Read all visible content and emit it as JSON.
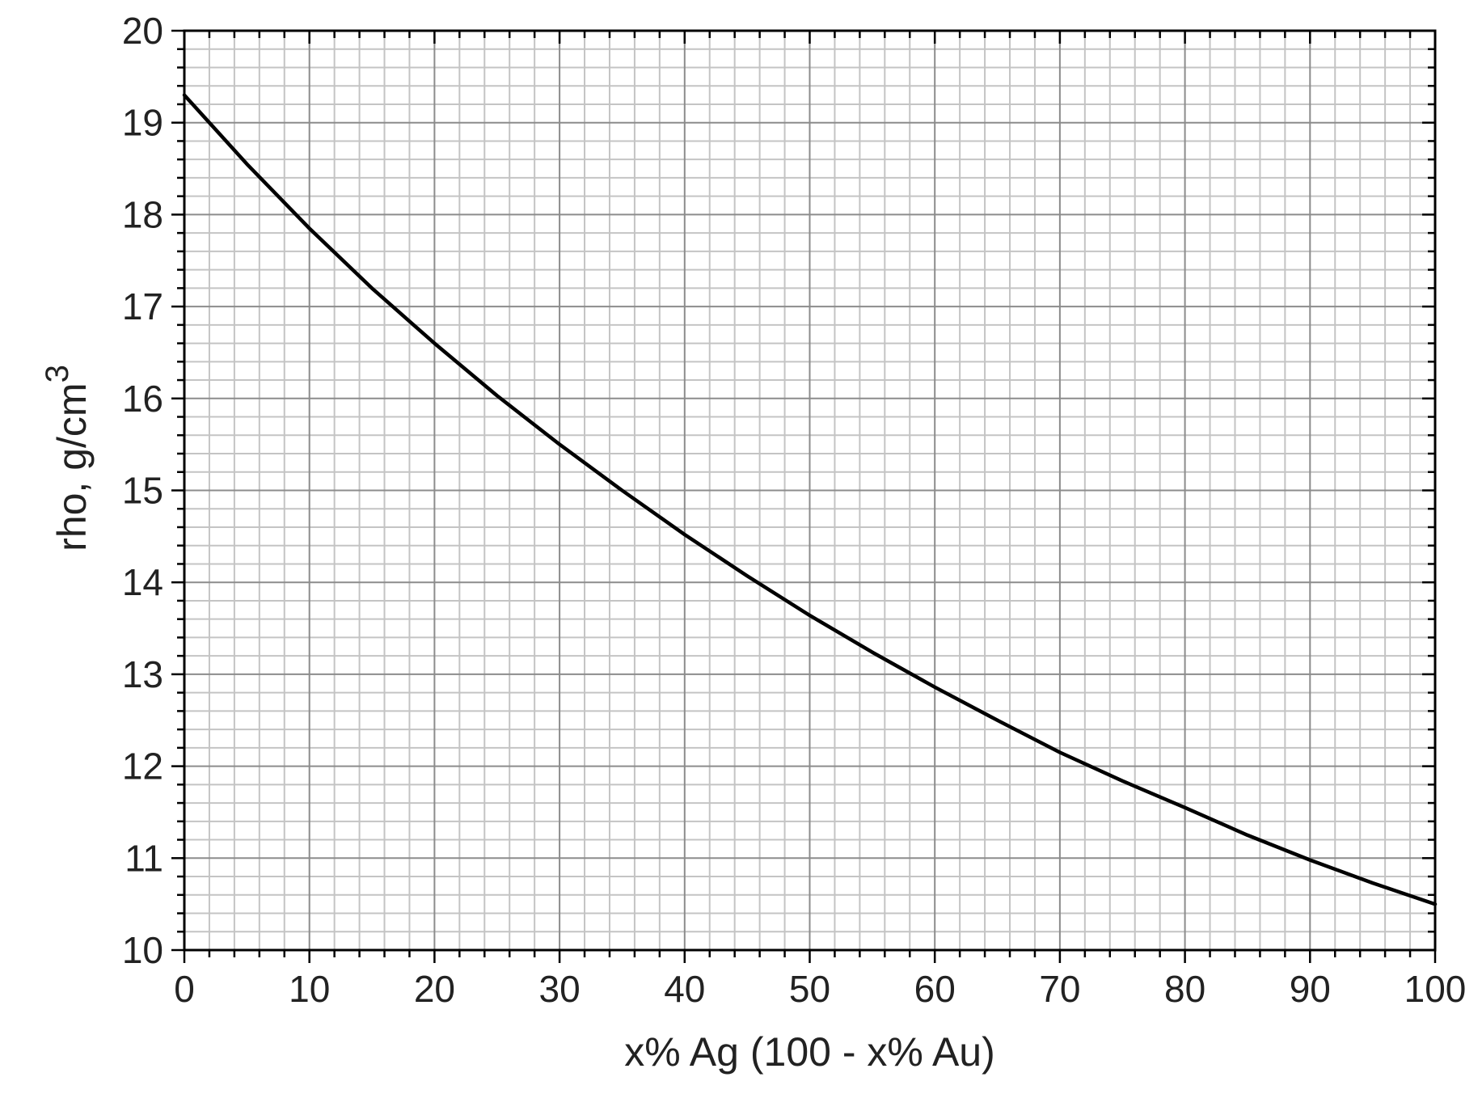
{
  "chart_data": {
    "type": "line",
    "title": "",
    "xlabel": "x% Ag (100 - x% Au)",
    "ylabel": "rho, g/cm",
    "ylabel_superscript": "3",
    "xlim": [
      0,
      100
    ],
    "ylim": [
      10,
      20
    ],
    "x_ticks": [
      0,
      10,
      20,
      30,
      40,
      50,
      60,
      70,
      80,
      90,
      100
    ],
    "y_ticks": [
      10,
      11,
      12,
      13,
      14,
      15,
      16,
      17,
      18,
      19,
      20
    ],
    "x_tick_labels": [
      "0",
      "10",
      "20",
      "30",
      "40",
      "50",
      "60",
      "70",
      "80",
      "90",
      "100"
    ],
    "y_tick_labels": [
      "10",
      "11",
      "12",
      "13",
      "14",
      "15",
      "16",
      "17",
      "18",
      "19",
      "20"
    ],
    "grid": true,
    "legend": "none",
    "series": [
      {
        "color": "#000000",
        "x": [
          0,
          5,
          10,
          15,
          20,
          25,
          30,
          35,
          40,
          45,
          50,
          55,
          60,
          65,
          70,
          75,
          80,
          85,
          90,
          95,
          100
        ],
        "y": [
          19.3,
          18.55,
          17.85,
          17.2,
          16.6,
          16.03,
          15.5,
          15.0,
          14.52,
          14.07,
          13.64,
          13.24,
          12.86,
          12.5,
          12.15,
          11.84,
          11.55,
          11.25,
          10.98,
          10.73,
          10.5
        ]
      }
    ],
    "colors": {
      "major_grid": "#8c8c8c",
      "minor_grid": "#c4c4c4",
      "axis": "#000000",
      "text": "#222222"
    }
  }
}
